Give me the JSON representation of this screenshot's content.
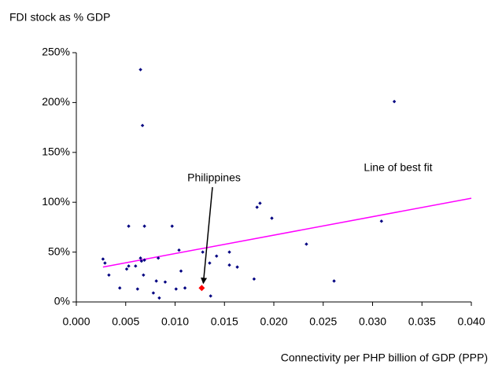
{
  "chart_data": {
    "type": "scatter",
    "y_label": "FDI stock as % GDP",
    "x_label": "Connectivity per PHP billion of GDP (PPP)",
    "x": [
      0.0027,
      0.0029,
      0.0033,
      0.0044,
      0.0051,
      0.0053,
      0.0053,
      0.006,
      0.0062,
      0.0065,
      0.0065,
      0.0066,
      0.0067,
      0.0068,
      0.0069,
      0.0069,
      0.0078,
      0.0081,
      0.0083,
      0.0084,
      0.009,
      0.0097,
      0.0101,
      0.0104,
      0.0106,
      0.011,
      0.0128,
      0.0135,
      0.0136,
      0.0142,
      0.0155,
      0.0155,
      0.0163,
      0.018,
      0.0183,
      0.0186,
      0.0198,
      0.0233,
      0.0261,
      0.0309,
      0.0322
    ],
    "values": [
      43,
      39,
      27,
      14,
      33,
      36,
      76,
      36,
      13,
      233,
      44,
      41,
      177,
      27,
      76,
      42,
      9,
      21,
      44,
      4,
      20,
      76,
      13,
      52,
      31,
      14,
      50,
      39,
      6,
      46,
      50,
      37,
      35,
      23,
      95,
      99,
      84,
      58,
      21,
      81,
      201
    ],
    "color": "#000080",
    "highlight": {
      "label": "Philippines",
      "x": 0.0127,
      "y": 14,
      "color": "#ff0000"
    },
    "trendline": {
      "label": "Line of best fit",
      "x": [
        0.0027,
        0.04
      ],
      "values": [
        35,
        104
      ],
      "color": "#ff00ff"
    },
    "xlim": [
      0,
      0.04
    ],
    "ylim": [
      0,
      250
    ],
    "xticks": [
      {
        "value": 0,
        "label": "0.000"
      },
      {
        "value": 0.005,
        "label": "0.005"
      },
      {
        "value": 0.01,
        "label": "0.010"
      },
      {
        "value": 0.015,
        "label": "0.015"
      },
      {
        "value": 0.02,
        "label": "0.020"
      },
      {
        "value": 0.025,
        "label": "0.025"
      },
      {
        "value": 0.03,
        "label": "0.030"
      },
      {
        "value": 0.035,
        "label": "0.035"
      },
      {
        "value": 0.04,
        "label": "0.040"
      }
    ],
    "yticks": [
      {
        "value": 0,
        "label": "0%"
      },
      {
        "value": 50,
        "label": "50%"
      },
      {
        "value": 100,
        "label": "100%"
      },
      {
        "value": 150,
        "label": "150%"
      },
      {
        "value": 200,
        "label": "200%"
      },
      {
        "value": 250,
        "label": "250%"
      }
    ]
  }
}
